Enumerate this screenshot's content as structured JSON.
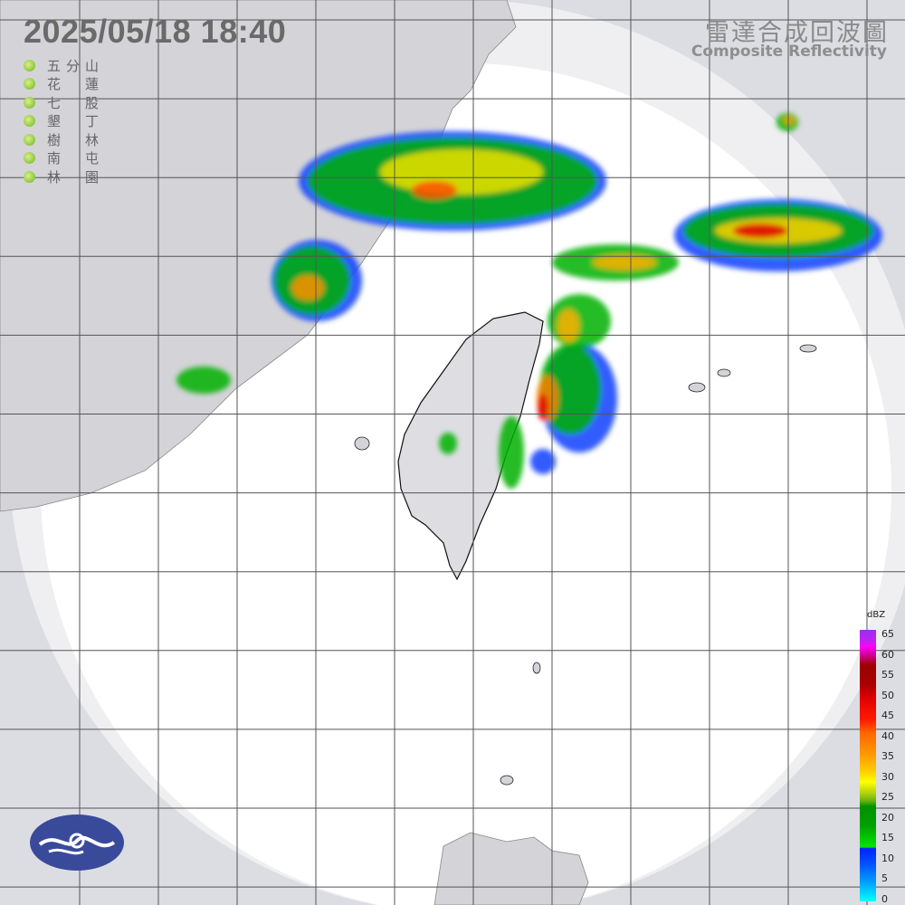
{
  "header": {
    "datetime": "2025/05/18  18:40",
    "title_zh": "雷達合成回波圖",
    "title_en": "Composite Reflectivity"
  },
  "stations": [
    {
      "name": "五分山",
      "status_color": "#8cc63e"
    },
    {
      "name": "花蓮",
      "status_color": "#8cc63e"
    },
    {
      "name": "七股",
      "status_color": "#8cc63e"
    },
    {
      "name": "墾丁",
      "status_color": "#8cc63e"
    },
    {
      "name": "樹林",
      "status_color": "#8cc63e"
    },
    {
      "name": "南屯",
      "status_color": "#8cc63e"
    },
    {
      "name": "林園",
      "status_color": "#8cc63e"
    }
  ],
  "legend": {
    "unit": "dBZ",
    "ticks": [
      "65",
      "60",
      "55",
      "50",
      "45",
      "40",
      "35",
      "30",
      "25",
      "20",
      "15",
      "10",
      "5",
      "0"
    ]
  },
  "colors": {
    "background": "#dcdde2",
    "radar_coverage": "#ffffff",
    "land": "#d4d4d8",
    "grid": "#555555",
    "logo": "#3a4a9a"
  },
  "logo": {
    "name": "central-weather-administration-logo"
  }
}
